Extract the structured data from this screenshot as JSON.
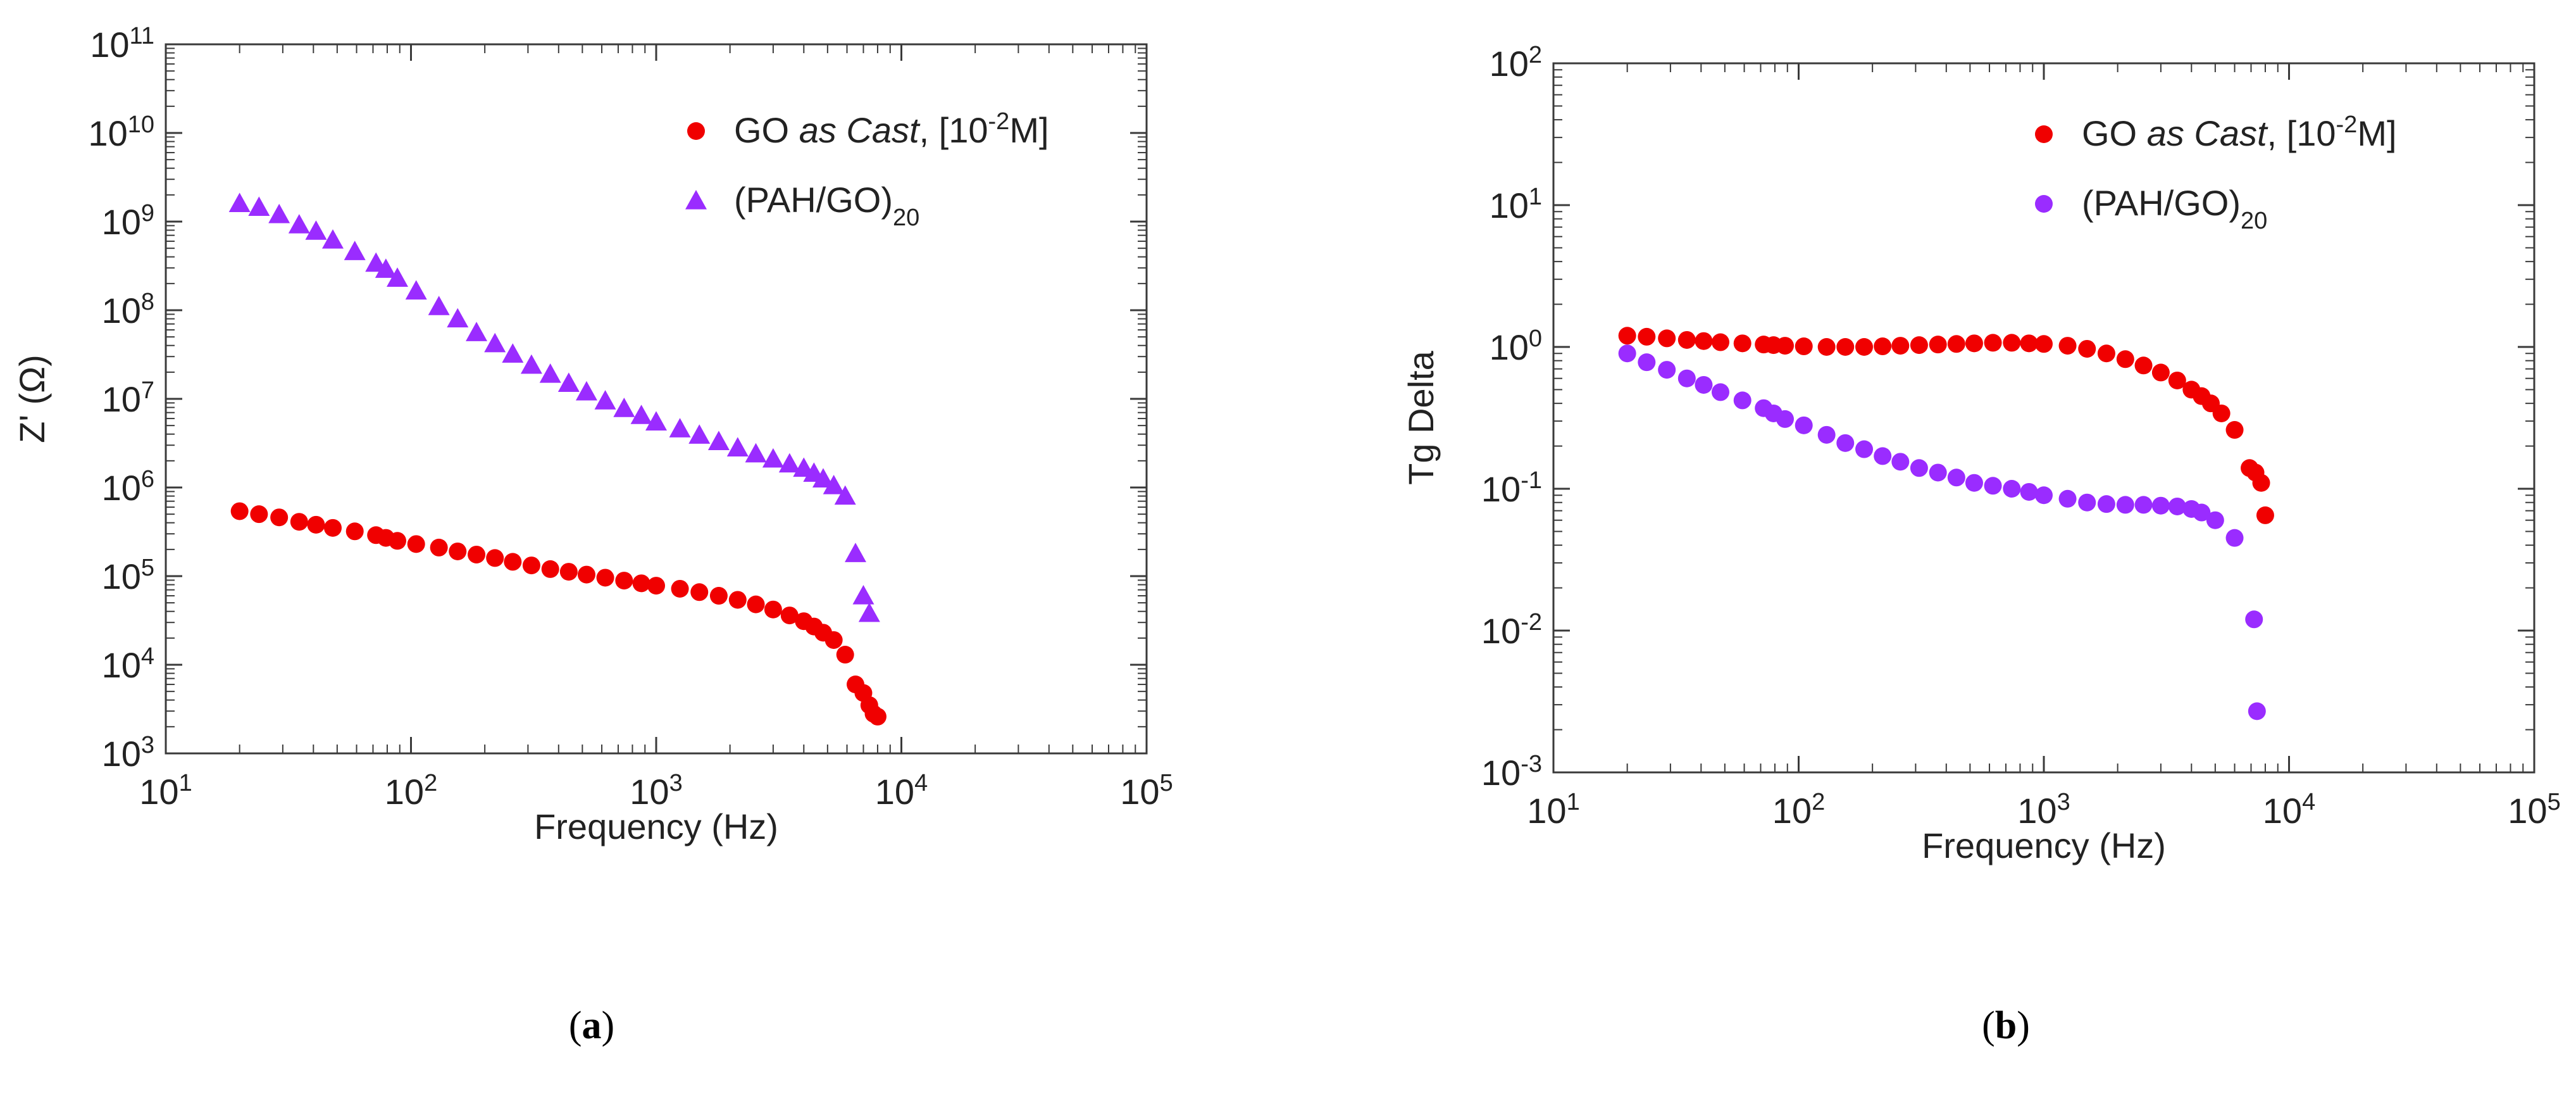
{
  "colors": {
    "red": "#f00000",
    "purple": "#9a2cff",
    "axis": "#3a3a3a"
  },
  "chart_data": [
    {
      "id": "a",
      "type": "scatter",
      "caption": "a",
      "xlabel": "Frequency (Hz)",
      "ylabel": "Z' (Ω)",
      "xscale": "log",
      "yscale": "log",
      "xlim": [
        10,
        100000
      ],
      "ylim": [
        1000,
        100000000000
      ],
      "x_ticks": [
        {
          "base": "10",
          "exp": "1"
        },
        {
          "base": "10",
          "exp": "2"
        },
        {
          "base": "10",
          "exp": "3"
        },
        {
          "base": "10",
          "exp": "4"
        },
        {
          "base": "10",
          "exp": "5"
        }
      ],
      "y_ticks": [
        {
          "base": "10",
          "exp": "3"
        },
        {
          "base": "10",
          "exp": "4"
        },
        {
          "base": "10",
          "exp": "5"
        },
        {
          "base": "10",
          "exp": "6"
        },
        {
          "base": "10",
          "exp": "7"
        },
        {
          "base": "10",
          "exp": "8"
        },
        {
          "base": "10",
          "exp": "9"
        },
        {
          "base": "10",
          "exp": "10"
        },
        {
          "base": "10",
          "exp": "11"
        }
      ],
      "legend_position": "top-right",
      "series": [
        {
          "name_parts": [
            "GO ",
            "as Cast",
            ", [10",
            "-2",
            "M]"
          ],
          "color": "red",
          "marker": "circle",
          "x": [
            20,
            24,
            29,
            35,
            41,
            48,
            59,
            72,
            79,
            88,
            105,
            130,
            155,
            185,
            220,
            260,
            310,
            370,
            440,
            520,
            620,
            740,
            870,
            1000,
            1250,
            1500,
            1800,
            2150,
            2550,
            3000,
            3500,
            4000,
            4400,
            4800,
            5300,
            5900,
            6500,
            7000,
            7400,
            7700,
            8000
          ],
          "y": [
            540000,
            500000,
            460000,
            410000,
            380000,
            350000,
            320000,
            290000,
            270000,
            250000,
            230000,
            210000,
            190000,
            175000,
            160000,
            145000,
            132000,
            120000,
            112000,
            104000,
            96000,
            89000,
            83000,
            78000,
            72000,
            66000,
            60000,
            54000,
            48000,
            42000,
            36000,
            31000,
            27000,
            23000,
            19000,
            13000,
            6000,
            4800,
            3500,
            2800,
            2600
          ]
        },
        {
          "name_parts": [
            "(PAH/GO)",
            "20"
          ],
          "color": "purple",
          "marker": "triangle",
          "x": [
            20,
            24,
            29,
            35,
            41,
            48,
            59,
            72,
            79,
            88,
            105,
            130,
            155,
            185,
            220,
            260,
            310,
            370,
            440,
            520,
            620,
            740,
            870,
            1000,
            1250,
            1500,
            1800,
            2150,
            2550,
            3000,
            3500,
            4000,
            4400,
            4800,
            5300,
            5900,
            6500,
            7000,
            7400
          ],
          "y": [
            1600000000,
            1450000000,
            1200000000,
            920000000,
            780000000,
            620000000,
            460000000,
            340000000,
            290000000,
            230000000,
            165000000,
            110000000,
            80000000,
            56000000,
            42000000,
            32000000,
            24000000,
            19000000,
            15000000,
            12000000,
            9500000,
            7800000,
            6500000,
            5500000,
            4600000,
            3900000,
            3300000,
            2800000,
            2400000,
            2100000,
            1850000,
            1650000,
            1450000,
            1250000,
            1050000,
            800000,
            180000,
            60000,
            38000
          ]
        }
      ]
    },
    {
      "id": "b",
      "type": "scatter",
      "caption": "b",
      "xlabel": "Frequency (Hz)",
      "ylabel": "Tg Delta",
      "xscale": "log",
      "yscale": "log",
      "xlim": [
        10,
        100000
      ],
      "ylim": [
        0.001,
        100
      ],
      "x_ticks": [
        {
          "base": "10",
          "exp": "1"
        },
        {
          "base": "10",
          "exp": "2"
        },
        {
          "base": "10",
          "exp": "3"
        },
        {
          "base": "10",
          "exp": "4"
        },
        {
          "base": "10",
          "exp": "5"
        }
      ],
      "y_ticks": [
        {
          "base": "10",
          "exp": "-3"
        },
        {
          "base": "10",
          "exp": "-2"
        },
        {
          "base": "10",
          "exp": "-1"
        },
        {
          "base": "10",
          "exp": "0"
        },
        {
          "base": "10",
          "exp": "1"
        },
        {
          "base": "10",
          "exp": "2"
        }
      ],
      "legend_position": "top-right",
      "series": [
        {
          "name_parts": [
            "GO  ",
            "as Cast",
            ", [10",
            "-2",
            "M]"
          ],
          "color": "red",
          "marker": "circle",
          "x": [
            20,
            24,
            29,
            35,
            41,
            48,
            59,
            72,
            79,
            88,
            105,
            130,
            155,
            185,
            220,
            260,
            310,
            370,
            440,
            520,
            620,
            740,
            870,
            1000,
            1250,
            1500,
            1800,
            2150,
            2550,
            3000,
            3500,
            4000,
            4400,
            4800,
            5300,
            6000,
            6900,
            7300,
            7700,
            8000
          ],
          "y": [
            1.2,
            1.18,
            1.15,
            1.12,
            1.1,
            1.08,
            1.06,
            1.04,
            1.03,
            1.02,
            1.01,
            1.0,
            1.0,
            1.0,
            1.01,
            1.02,
            1.03,
            1.04,
            1.05,
            1.06,
            1.07,
            1.07,
            1.06,
            1.05,
            1.02,
            0.97,
            0.9,
            0.82,
            0.74,
            0.66,
            0.58,
            0.5,
            0.45,
            0.4,
            0.34,
            0.26,
            0.14,
            0.13,
            0.11,
            0.065
          ]
        },
        {
          "name_parts": [
            "(PAH/GO)",
            "20"
          ],
          "color": "purple",
          "marker": "circle",
          "x": [
            20,
            24,
            29,
            35,
            41,
            48,
            59,
            72,
            79,
            88,
            105,
            130,
            155,
            185,
            220,
            260,
            310,
            370,
            440,
            520,
            620,
            740,
            870,
            1000,
            1250,
            1500,
            1800,
            2150,
            2550,
            3000,
            3500,
            4000,
            4400,
            5000,
            6000,
            7200,
            7400
          ],
          "y": [
            0.9,
            0.78,
            0.69,
            0.6,
            0.54,
            0.48,
            0.42,
            0.37,
            0.34,
            0.31,
            0.28,
            0.24,
            0.21,
            0.19,
            0.17,
            0.155,
            0.14,
            0.13,
            0.12,
            0.11,
            0.105,
            0.1,
            0.095,
            0.09,
            0.085,
            0.08,
            0.078,
            0.077,
            0.077,
            0.076,
            0.075,
            0.072,
            0.068,
            0.06,
            0.045,
            0.012,
            0.0027
          ]
        }
      ]
    }
  ]
}
